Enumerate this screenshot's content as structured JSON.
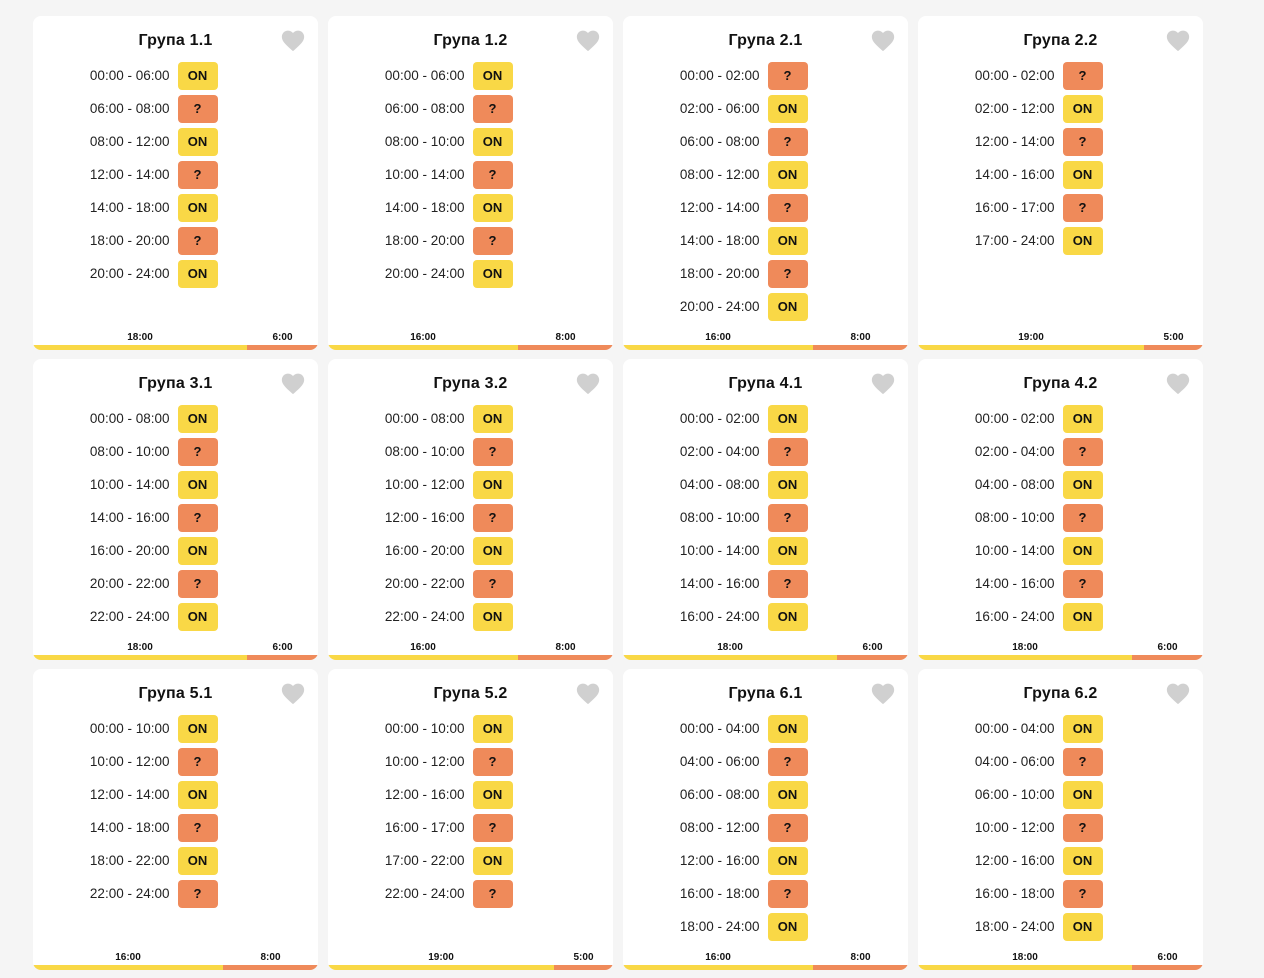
{
  "colors": {
    "on": "#f9d846",
    "unknown": "#ef8a5a",
    "heart": "#d0d0d0"
  },
  "icons": {
    "favorite": "heart-icon"
  },
  "groups": [
    {
      "title": "Група 1.1",
      "bar": {
        "on_label": "18:00",
        "unknown_label": "6:00",
        "on_fraction": 0.75
      },
      "slots": [
        [
          "00:00 - 06:00",
          "ON"
        ],
        [
          "06:00 - 08:00",
          "?"
        ],
        [
          "08:00 - 12:00",
          "ON"
        ],
        [
          "12:00 - 14:00",
          "?"
        ],
        [
          "14:00 - 18:00",
          "ON"
        ],
        [
          "18:00 - 20:00",
          "?"
        ],
        [
          "20:00 - 24:00",
          "ON"
        ]
      ]
    },
    {
      "title": "Група 1.2",
      "bar": {
        "on_label": "16:00",
        "unknown_label": "8:00",
        "on_fraction": 0.667
      },
      "slots": [
        [
          "00:00 - 06:00",
          "ON"
        ],
        [
          "06:00 - 08:00",
          "?"
        ],
        [
          "08:00 - 10:00",
          "ON"
        ],
        [
          "10:00 - 14:00",
          "?"
        ],
        [
          "14:00 - 18:00",
          "ON"
        ],
        [
          "18:00 - 20:00",
          "?"
        ],
        [
          "20:00 - 24:00",
          "ON"
        ]
      ]
    },
    {
      "title": "Група 2.1",
      "bar": {
        "on_label": "16:00",
        "unknown_label": "8:00",
        "on_fraction": 0.667
      },
      "slots": [
        [
          "00:00 - 02:00",
          "?"
        ],
        [
          "02:00 - 06:00",
          "ON"
        ],
        [
          "06:00 - 08:00",
          "?"
        ],
        [
          "08:00 - 12:00",
          "ON"
        ],
        [
          "12:00 - 14:00",
          "?"
        ],
        [
          "14:00 - 18:00",
          "ON"
        ],
        [
          "18:00 - 20:00",
          "?"
        ],
        [
          "20:00 - 24:00",
          "ON"
        ]
      ]
    },
    {
      "title": "Група 2.2",
      "bar": {
        "on_label": "19:00",
        "unknown_label": "5:00",
        "on_fraction": 0.792
      },
      "slots": [
        [
          "00:00 - 02:00",
          "?"
        ],
        [
          "02:00 - 12:00",
          "ON"
        ],
        [
          "12:00 - 14:00",
          "?"
        ],
        [
          "14:00 - 16:00",
          "ON"
        ],
        [
          "16:00 - 17:00",
          "?"
        ],
        [
          "17:00 - 24:00",
          "ON"
        ]
      ]
    },
    {
      "title": "Група 3.1",
      "bar": {
        "on_label": "18:00",
        "unknown_label": "6:00",
        "on_fraction": 0.75
      },
      "slots": [
        [
          "00:00 - 08:00",
          "ON"
        ],
        [
          "08:00 - 10:00",
          "?"
        ],
        [
          "10:00 - 14:00",
          "ON"
        ],
        [
          "14:00 - 16:00",
          "?"
        ],
        [
          "16:00 - 20:00",
          "ON"
        ],
        [
          "20:00 - 22:00",
          "?"
        ],
        [
          "22:00 - 24:00",
          "ON"
        ]
      ]
    },
    {
      "title": "Група 3.2",
      "bar": {
        "on_label": "16:00",
        "unknown_label": "8:00",
        "on_fraction": 0.667
      },
      "slots": [
        [
          "00:00 - 08:00",
          "ON"
        ],
        [
          "08:00 - 10:00",
          "?"
        ],
        [
          "10:00 - 12:00",
          "ON"
        ],
        [
          "12:00 - 16:00",
          "?"
        ],
        [
          "16:00 - 20:00",
          "ON"
        ],
        [
          "20:00 - 22:00",
          "?"
        ],
        [
          "22:00 - 24:00",
          "ON"
        ]
      ]
    },
    {
      "title": "Група 4.1",
      "bar": {
        "on_label": "18:00",
        "unknown_label": "6:00",
        "on_fraction": 0.75
      },
      "slots": [
        [
          "00:00 - 02:00",
          "ON"
        ],
        [
          "02:00 - 04:00",
          "?"
        ],
        [
          "04:00 - 08:00",
          "ON"
        ],
        [
          "08:00 - 10:00",
          "?"
        ],
        [
          "10:00 - 14:00",
          "ON"
        ],
        [
          "14:00 - 16:00",
          "?"
        ],
        [
          "16:00 - 24:00",
          "ON"
        ]
      ]
    },
    {
      "title": "Група 4.2",
      "bar": {
        "on_label": "18:00",
        "unknown_label": "6:00",
        "on_fraction": 0.75
      },
      "slots": [
        [
          "00:00 - 02:00",
          "ON"
        ],
        [
          "02:00 - 04:00",
          "?"
        ],
        [
          "04:00 - 08:00",
          "ON"
        ],
        [
          "08:00 - 10:00",
          "?"
        ],
        [
          "10:00 - 14:00",
          "ON"
        ],
        [
          "14:00 - 16:00",
          "?"
        ],
        [
          "16:00 - 24:00",
          "ON"
        ]
      ]
    },
    {
      "title": "Група 5.1",
      "bar": {
        "on_label": "16:00",
        "unknown_label": "8:00",
        "on_fraction": 0.667
      },
      "slots": [
        [
          "00:00 - 10:00",
          "ON"
        ],
        [
          "10:00 - 12:00",
          "?"
        ],
        [
          "12:00 - 14:00",
          "ON"
        ],
        [
          "14:00 - 18:00",
          "?"
        ],
        [
          "18:00 - 22:00",
          "ON"
        ],
        [
          "22:00 - 24:00",
          "?"
        ]
      ]
    },
    {
      "title": "Група 5.2",
      "bar": {
        "on_label": "19:00",
        "unknown_label": "5:00",
        "on_fraction": 0.792
      },
      "slots": [
        [
          "00:00 - 10:00",
          "ON"
        ],
        [
          "10:00 - 12:00",
          "?"
        ],
        [
          "12:00 - 16:00",
          "ON"
        ],
        [
          "16:00 - 17:00",
          "?"
        ],
        [
          "17:00 - 22:00",
          "ON"
        ],
        [
          "22:00 - 24:00",
          "?"
        ]
      ]
    },
    {
      "title": "Група 6.1",
      "bar": {
        "on_label": "16:00",
        "unknown_label": "8:00",
        "on_fraction": 0.667
      },
      "slots": [
        [
          "00:00 - 04:00",
          "ON"
        ],
        [
          "04:00 - 06:00",
          "?"
        ],
        [
          "06:00 - 08:00",
          "ON"
        ],
        [
          "08:00 - 12:00",
          "?"
        ],
        [
          "12:00 - 16:00",
          "ON"
        ],
        [
          "16:00 - 18:00",
          "?"
        ],
        [
          "18:00 - 24:00",
          "ON"
        ]
      ]
    },
    {
      "title": "Група 6.2",
      "bar": {
        "on_label": "18:00",
        "unknown_label": "6:00",
        "on_fraction": 0.75
      },
      "slots": [
        [
          "00:00 - 04:00",
          "ON"
        ],
        [
          "04:00 - 06:00",
          "?"
        ],
        [
          "06:00 - 10:00",
          "ON"
        ],
        [
          "10:00 - 12:00",
          "?"
        ],
        [
          "12:00 - 16:00",
          "ON"
        ],
        [
          "16:00 - 18:00",
          "?"
        ],
        [
          "18:00 - 24:00",
          "ON"
        ]
      ]
    }
  ]
}
